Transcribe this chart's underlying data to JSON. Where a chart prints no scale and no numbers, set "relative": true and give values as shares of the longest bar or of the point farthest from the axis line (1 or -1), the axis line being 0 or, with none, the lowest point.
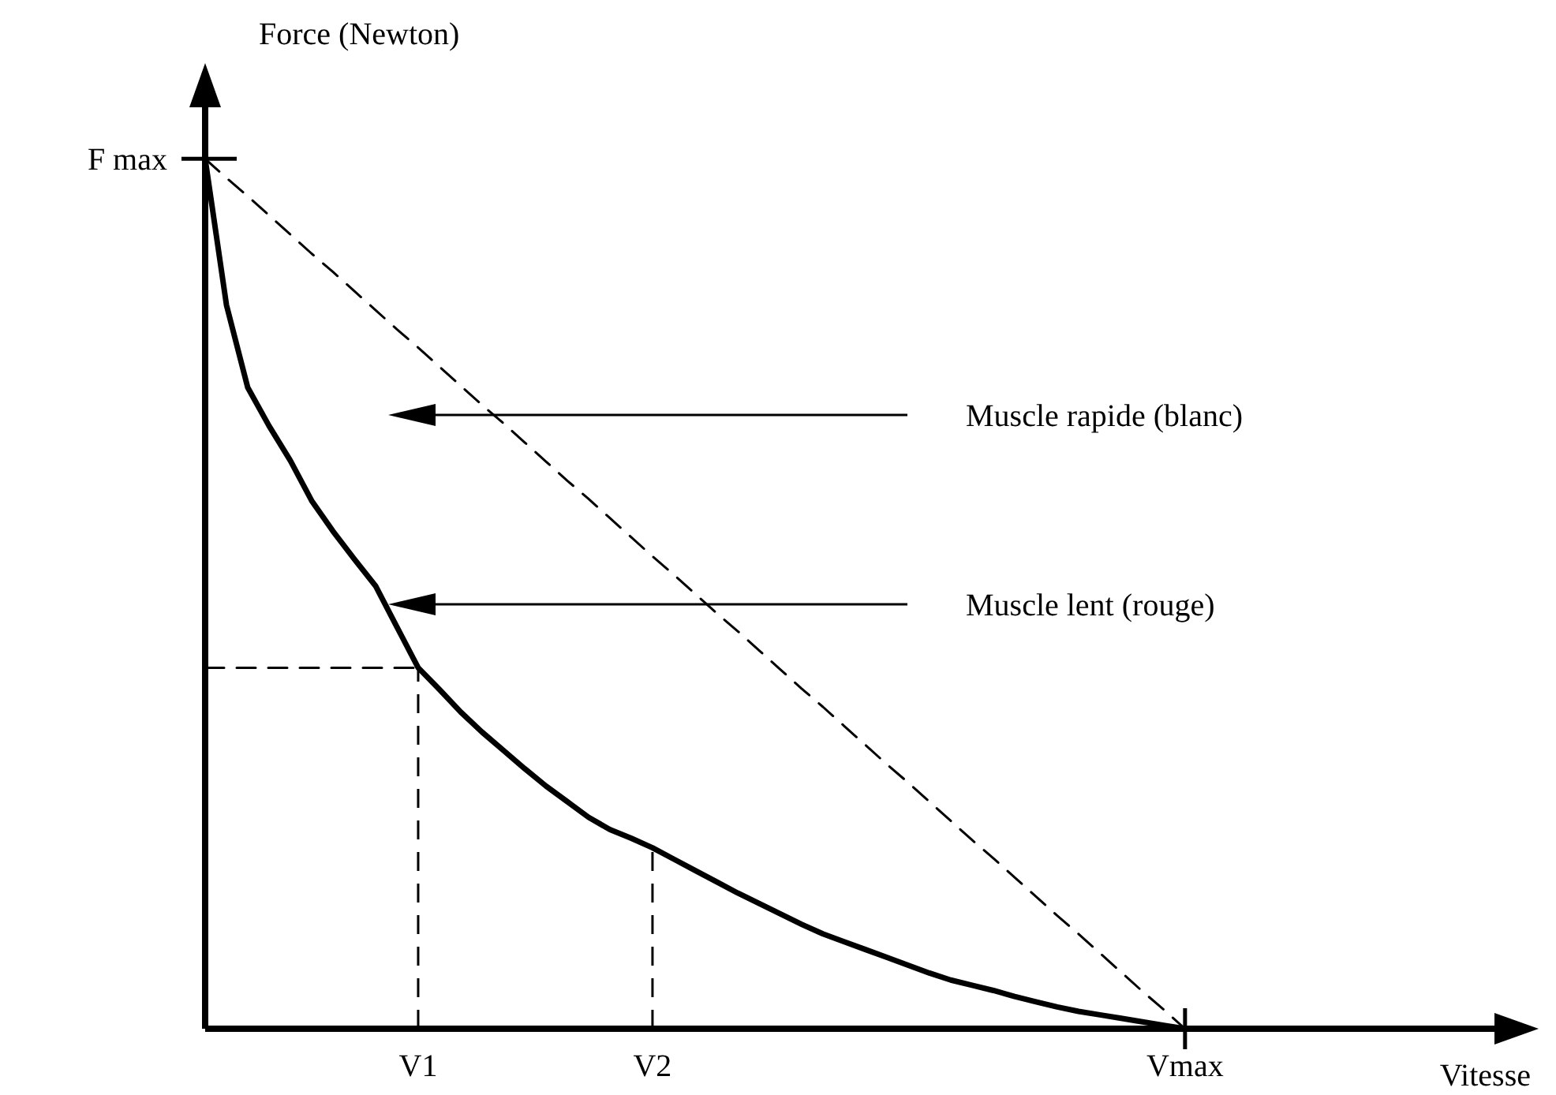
{
  "chart_data": {
    "type": "line",
    "xlabel": "Vitesse",
    "ylabel": "Force (Newton)",
    "relative": true,
    "categories": [
      null,
      null,
      null,
      null,
      null,
      null,
      null,
      null,
      null,
      null,
      "V1",
      null,
      null,
      null,
      null,
      null,
      null,
      null,
      null,
      null,
      null,
      "V2",
      null,
      null,
      null,
      null,
      null,
      null,
      null,
      null,
      null,
      null,
      null,
      null,
      null,
      null,
      null,
      null,
      null,
      null,
      null,
      null,
      null,
      null,
      null,
      null,
      "Vmax",
      null,
      null,
      null,
      null,
      null,
      null,
      null,
      null,
      null,
      null,
      null,
      null,
      null,
      null,
      null,
      null
    ],
    "series": [
      {
        "color": "#000000",
        "line_style": "dashed",
        "values": [
          1,
          0.978,
          0.957,
          0.935,
          0.913,
          0.891,
          0.87,
          0.848,
          0.826,
          0.804,
          0.783,
          0.761,
          0.739,
          0.717,
          0.696,
          0.674,
          0.652,
          0.63,
          0.609,
          0.587,
          0.565,
          0.543,
          0.522,
          0.5,
          0.478,
          0.457,
          0.435,
          0.413,
          0.391,
          0.37,
          0.348,
          0.326,
          0.304,
          0.283,
          0.261,
          0.239,
          0.217,
          0.196,
          0.174,
          0.152,
          0.13,
          0.109,
          0.087,
          0.065,
          0.043,
          0.022,
          0,
          null,
          null,
          null,
          null,
          null,
          null,
          null,
          null,
          null,
          null,
          null,
          null,
          null,
          null,
          null,
          null
        ]
      },
      {
        "color": "#000000",
        "line_style": "solid",
        "values": [
          1,
          0.832,
          0.737,
          0.693,
          0.653,
          0.607,
          0.572,
          0.54,
          0.509,
          0.462,
          0.415,
          0.39,
          0.364,
          0.341,
          0.32,
          0.299,
          0.279,
          0.261,
          0.243,
          0.229,
          0.219,
          0.208,
          0.195,
          0.182,
          0.169,
          0.156,
          0.144,
          0.132,
          0.12,
          0.109,
          0.1,
          0.091,
          0.082,
          0.073,
          0.064,
          0.056,
          0.05,
          0.044,
          0.037,
          0.031,
          0.025,
          0.02,
          0.016,
          0.012,
          0.008,
          0.004,
          0,
          null,
          null,
          null,
          null,
          null,
          null,
          null,
          null,
          null,
          null,
          null,
          null,
          null,
          null,
          null,
          null
        ]
      },
      {
        "color": "#000000",
        "line_style": "dashed",
        "values": [
          0.415,
          0.415,
          0.415,
          0.415,
          0.415,
          0.415,
          0.415,
          0.415,
          0.415,
          0.415,
          0.415,
          null,
          null,
          null,
          null,
          null,
          null,
          null,
          null,
          null,
          null,
          null,
          null,
          null,
          null,
          null,
          null,
          null,
          null,
          null,
          null,
          null,
          null,
          null,
          null,
          null,
          null,
          null,
          null,
          null,
          null,
          null,
          null,
          null,
          null,
          null,
          null,
          null,
          null,
          null,
          null,
          null,
          null,
          null,
          null,
          null,
          null,
          null,
          null,
          null,
          null,
          null,
          null
        ]
      }
    ],
    "ref_lines": [
      {
        "axis": "x",
        "value": "V1",
        "line_style": "dashed",
        "color": "#000000"
      },
      {
        "axis": "x",
        "value": "V2",
        "line_style": "dashed",
        "color": "#000000"
      }
    ],
    "annotations": [
      "F max",
      "Muscle rapide (blanc)",
      "Muscle lent (rouge)"
    ]
  }
}
